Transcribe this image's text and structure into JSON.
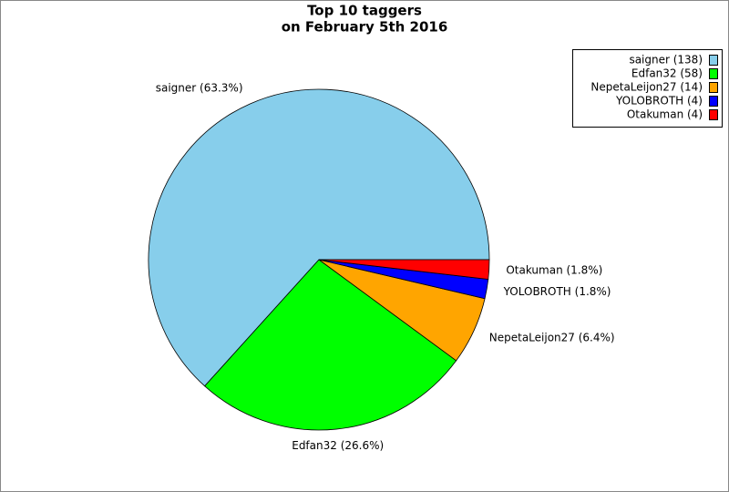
{
  "chart_data": {
    "type": "pie",
    "title": "Top 10 taggers",
    "subtitle": "on February 5th 2016",
    "categories": [
      "saigner (138)",
      "Edfan32 (58)",
      "NepetaLeijon27 (14)",
      "YOLOBROTH (4)",
      "Otakuman (4)"
    ],
    "values": [
      138,
      58,
      14,
      4,
      4
    ],
    "value_labels": [
      "saigner (63.3%)",
      "Edfan32 (26.6%)",
      "NepetaLeijon27 (6.4%)",
      "YOLOBROTH (1.8%)",
      "Otakuman (1.8%)"
    ],
    "colors": [
      "#87ceeb",
      "#00ff00",
      "#ffa500",
      "#0000ff",
      "#ff0000"
    ],
    "legend": "upper right"
  }
}
